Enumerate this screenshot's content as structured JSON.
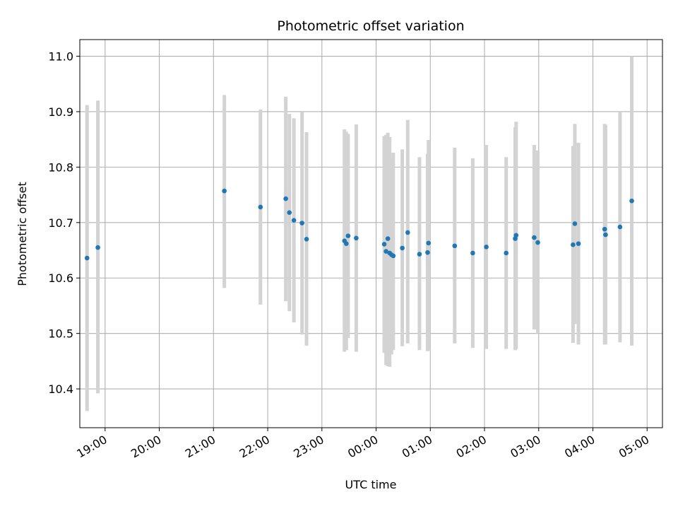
{
  "chart_data": {
    "type": "scatter",
    "title": "Photometric offset variation",
    "xlabel": "UTC time",
    "ylabel": "Photometric offset",
    "grid": true,
    "xlim": [
      "18:32",
      "05:17"
    ],
    "ylim": [
      10.33,
      11.03
    ],
    "xticks": [
      "19:00",
      "20:00",
      "21:00",
      "22:00",
      "23:00",
      "00:00",
      "01:00",
      "02:00",
      "03:00",
      "04:00",
      "05:00"
    ],
    "yticks": [
      10.4,
      10.5,
      10.6,
      10.7,
      10.8,
      10.9,
      11.0
    ],
    "ytick_labels": [
      "10.4",
      "10.5",
      "10.6",
      "10.7",
      "10.8",
      "10.9",
      "11.0"
    ],
    "point_color": "#1f77b4",
    "errorbar_color": "#d3d3d3",
    "points": [
      {
        "x": "18:40",
        "y": 10.636,
        "ylow": 10.36,
        "yhigh": 10.912
      },
      {
        "x": "18:52",
        "y": 10.655,
        "ylow": 10.392,
        "yhigh": 10.92
      },
      {
        "x": "21:12",
        "y": 10.757,
        "ylow": 10.582,
        "yhigh": 10.93
      },
      {
        "x": "21:52",
        "y": 10.728,
        "ylow": 10.552,
        "yhigh": 10.904
      },
      {
        "x": "22:20",
        "y": 10.743,
        "ylow": 10.558,
        "yhigh": 10.927
      },
      {
        "x": "22:24",
        "y": 10.718,
        "ylow": 10.54,
        "yhigh": 10.896
      },
      {
        "x": "22:29",
        "y": 10.704,
        "ylow": 10.52,
        "yhigh": 10.888
      },
      {
        "x": "22:38",
        "y": 10.699,
        "ylow": 10.498,
        "yhigh": 10.9
      },
      {
        "x": "22:43",
        "y": 10.67,
        "ylow": 10.478,
        "yhigh": 10.863
      },
      {
        "x": "23:25",
        "y": 10.667,
        "ylow": 10.467,
        "yhigh": 10.868
      },
      {
        "x": "23:27",
        "y": 10.662,
        "ylow": 10.47,
        "yhigh": 10.864
      },
      {
        "x": "23:29",
        "y": 10.676,
        "ylow": 10.492,
        "yhigh": 10.86
      },
      {
        "x": "23:38",
        "y": 10.672,
        "ylow": 10.467,
        "yhigh": 10.877
      },
      {
        "x": "00:09",
        "y": 10.661,
        "ylow": 10.465,
        "yhigh": 10.856
      },
      {
        "x": "00:11",
        "y": 10.648,
        "ylow": 10.443,
        "yhigh": 10.858
      },
      {
        "x": "00:13",
        "y": 10.671,
        "ylow": 10.441,
        "yhigh": 10.862
      },
      {
        "x": "00:15",
        "y": 10.645,
        "ylow": 10.44,
        "yhigh": 10.854
      },
      {
        "x": "00:17",
        "y": 10.642,
        "ylow": 10.462,
        "yhigh": 10.815
      },
      {
        "x": "00:19",
        "y": 10.64,
        "ylow": 10.47,
        "yhigh": 10.826
      },
      {
        "x": "00:29",
        "y": 10.654,
        "ylow": 10.477,
        "yhigh": 10.832
      },
      {
        "x": "00:35",
        "y": 10.682,
        "ylow": 10.482,
        "yhigh": 10.885
      },
      {
        "x": "00:48",
        "y": 10.643,
        "ylow": 10.47,
        "yhigh": 10.818
      },
      {
        "x": "00:57",
        "y": 10.646,
        "ylow": 10.468,
        "yhigh": 10.824
      },
      {
        "x": "00:58",
        "y": 10.663,
        "ylow": 10.47,
        "yhigh": 10.849
      },
      {
        "x": "01:27",
        "y": 10.658,
        "ylow": 10.482,
        "yhigh": 10.835
      },
      {
        "x": "01:47",
        "y": 10.645,
        "ylow": 10.474,
        "yhigh": 10.816
      },
      {
        "x": "02:02",
        "y": 10.656,
        "ylow": 10.472,
        "yhigh": 10.84
      },
      {
        "x": "02:24",
        "y": 10.645,
        "ylow": 10.472,
        "yhigh": 10.818
      },
      {
        "x": "02:34",
        "y": 10.671,
        "ylow": 10.47,
        "yhigh": 10.872
      },
      {
        "x": "02:35",
        "y": 10.677,
        "ylow": 10.472,
        "yhigh": 10.882
      },
      {
        "x": "02:55",
        "y": 10.673,
        "ylow": 10.507,
        "yhigh": 10.84
      },
      {
        "x": "02:59",
        "y": 10.664,
        "ylow": 10.5,
        "yhigh": 10.83
      },
      {
        "x": "03:38",
        "y": 10.66,
        "ylow": 10.483,
        "yhigh": 10.838
      },
      {
        "x": "03:40",
        "y": 10.698,
        "ylow": 10.517,
        "yhigh": 10.878
      },
      {
        "x": "03:44",
        "y": 10.662,
        "ylow": 10.48,
        "yhigh": 10.844
      },
      {
        "x": "04:13",
        "y": 10.688,
        "ylow": 10.48,
        "yhigh": 10.878
      },
      {
        "x": "04:14",
        "y": 10.678,
        "ylow": 10.48,
        "yhigh": 10.876
      },
      {
        "x": "04:30",
        "y": 10.692,
        "ylow": 10.484,
        "yhigh": 10.9
      },
      {
        "x": "04:43",
        "y": 10.739,
        "ylow": 10.478,
        "yhigh": 11.0
      }
    ]
  }
}
